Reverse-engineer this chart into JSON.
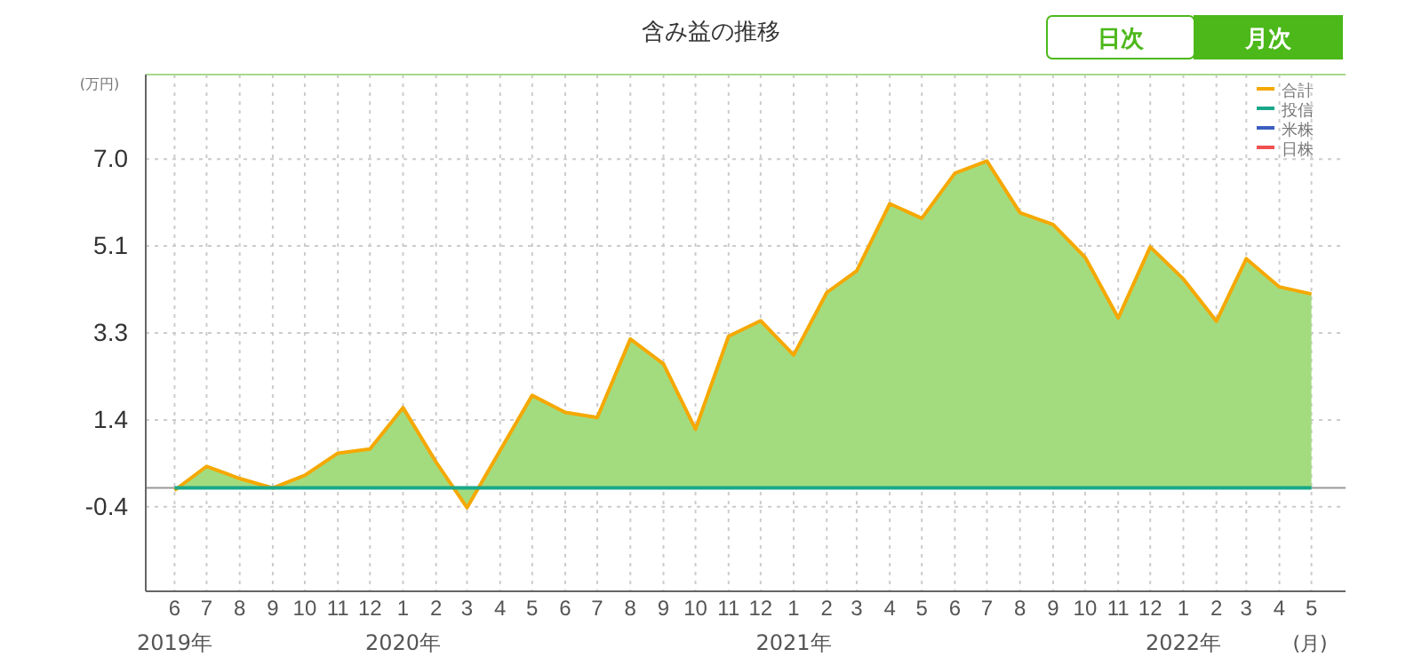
{
  "chart_data": {
    "type": "area",
    "title": "含み益の推移",
    "ylabel": "(万円)",
    "x": [
      "2019-06",
      "2019-07",
      "2019-08",
      "2019-09",
      "2019-10",
      "2019-11",
      "2019-12",
      "2020-01",
      "2020-02",
      "2020-03",
      "2020-04",
      "2020-05",
      "2020-06",
      "2020-07",
      "2020-08",
      "2020-09",
      "2020-10",
      "2020-11",
      "2020-12",
      "2021-01",
      "2021-02",
      "2021-03",
      "2021-04",
      "2021-05",
      "2021-06",
      "2021-07",
      "2021-08",
      "2021-09",
      "2021-10",
      "2021-11",
      "2021-12",
      "2022-01",
      "2022-02",
      "2022-03",
      "2022-04",
      "2022-05"
    ],
    "series": [
      {
        "name": "合計",
        "color": "#f5a800",
        "values": [
          -0.05,
          0.46,
          0.2,
          0.0,
          0.27,
          0.74,
          0.83,
          1.71,
          0.55,
          -0.42,
          0.8,
          1.97,
          1.61,
          1.5,
          3.17,
          2.64,
          1.25,
          3.23,
          3.56,
          2.83,
          4.16,
          4.62,
          6.05,
          5.74,
          6.7,
          6.96,
          5.86,
          5.61,
          4.91,
          3.62,
          5.13,
          4.45,
          3.55,
          4.88,
          4.28,
          4.13
        ]
      },
      {
        "name": "投信",
        "type": "line",
        "color": "#1aa88a",
        "values": [
          0,
          0,
          0,
          0,
          0,
          0,
          0,
          0,
          0,
          0,
          0,
          0,
          0,
          0,
          0,
          0,
          0,
          0,
          0,
          0,
          0,
          0,
          0,
          0,
          0,
          0,
          0,
          0,
          0,
          0,
          0,
          0,
          0,
          0,
          0,
          0
        ]
      },
      {
        "name": "米株",
        "type": "line",
        "color": "#3b5fc0",
        "values": [
          null,
          null,
          null,
          null,
          null,
          null,
          null,
          null,
          null,
          null,
          null,
          null,
          null,
          null,
          null,
          null,
          null,
          null,
          null,
          null,
          null,
          null,
          null,
          null,
          null,
          null,
          null,
          null,
          null,
          null,
          null,
          null,
          null,
          null,
          null,
          null
        ]
      },
      {
        "name": "日株",
        "type": "line",
        "color": "#f05050",
        "values": [
          null,
          null,
          null,
          null,
          null,
          null,
          null,
          null,
          null,
          null,
          null,
          null,
          null,
          null,
          null,
          null,
          null,
          null,
          null,
          null,
          null,
          null,
          null,
          null,
          null,
          null,
          null,
          null,
          null,
          null,
          null,
          null,
          null,
          null,
          null,
          null
        ]
      }
    ],
    "xlim": [
      "2019-05-05",
      "2022-06-02"
    ],
    "xticks": [
      {
        "value": "2019-06",
        "label": "6"
      },
      {
        "value": "2019-07",
        "label": "7"
      },
      {
        "value": "2019-08",
        "label": "8"
      },
      {
        "value": "2019-09",
        "label": "9"
      },
      {
        "value": "2019-10",
        "label": "10"
      },
      {
        "value": "2019-11",
        "label": "11"
      },
      {
        "value": "2019-12",
        "label": "12"
      },
      {
        "value": "2020-01",
        "label": "1"
      },
      {
        "value": "2020-02",
        "label": "2"
      },
      {
        "value": "2020-03",
        "label": "3"
      },
      {
        "value": "2020-04",
        "label": "4"
      },
      {
        "value": "2020-05",
        "label": "5"
      },
      {
        "value": "2020-06",
        "label": "6"
      },
      {
        "value": "2020-07",
        "label": "7"
      },
      {
        "value": "2020-08",
        "label": "8"
      },
      {
        "value": "2020-09",
        "label": "9"
      },
      {
        "value": "2020-10",
        "label": "10"
      },
      {
        "value": "2020-11",
        "label": "11"
      },
      {
        "value": "2020-12",
        "label": "12"
      },
      {
        "value": "2021-01",
        "label": "1"
      },
      {
        "value": "2021-02",
        "label": "2"
      },
      {
        "value": "2021-03",
        "label": "3"
      },
      {
        "value": "2021-04",
        "label": "4"
      },
      {
        "value": "2021-05",
        "label": "5"
      },
      {
        "value": "2021-06",
        "label": "6"
      },
      {
        "value": "2021-07",
        "label": "7"
      },
      {
        "value": "2021-08",
        "label": "8"
      },
      {
        "value": "2021-09",
        "label": "9"
      },
      {
        "value": "2021-10",
        "label": "10"
      },
      {
        "value": "2021-11",
        "label": "11"
      },
      {
        "value": "2021-12",
        "label": "12"
      },
      {
        "value": "2022-01",
        "label": "1"
      },
      {
        "value": "2022-02",
        "label": "2"
      },
      {
        "value": "2022-03",
        "label": "3"
      },
      {
        "value": "2022-04",
        "label": "4"
      },
      {
        "value": "2022-05",
        "label": "5"
      }
    ],
    "ylim": [
      -2.2,
      8.8
    ],
    "yticks": [
      {
        "value": -0.4,
        "label": "-0.4"
      },
      {
        "value": 1.45,
        "label": "1.4"
      },
      {
        "value": 3.3,
        "label": "3.3"
      },
      {
        "value": 5.15,
        "label": "5.1"
      },
      {
        "value": 7.0,
        "label": "7.0"
      }
    ],
    "ref_lines": [
      {
        "axis": "y",
        "value": 0,
        "color": "#999999"
      }
    ],
    "annotations": [
      "日次",
      "月次",
      "(月)",
      "2019年",
      "2020年",
      "2021年",
      "2022年"
    ],
    "grid": true,
    "legend": "top right",
    "line_style": "solid"
  }
}
